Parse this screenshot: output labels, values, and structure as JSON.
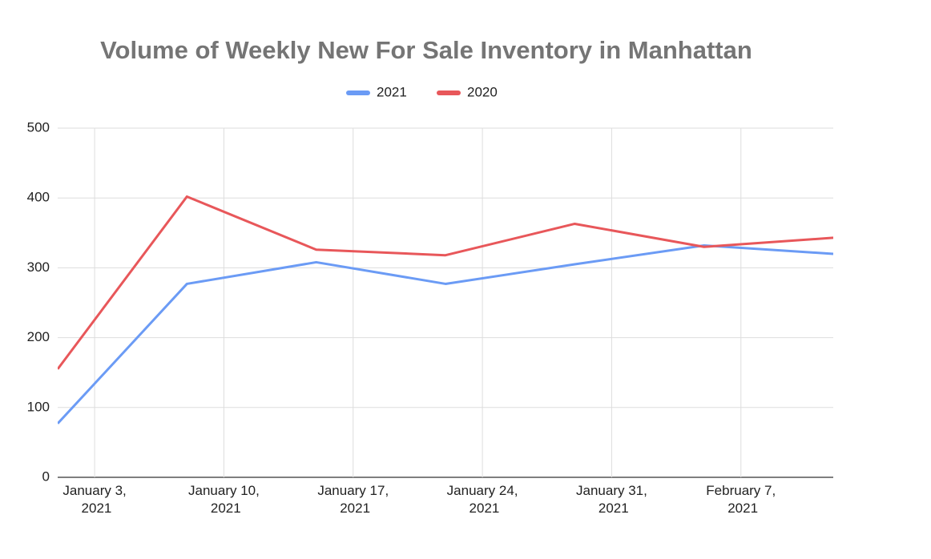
{
  "chart_data": {
    "type": "line",
    "title": "Volume of Weekly New For Sale Inventory in Manhattan",
    "x": [
      "2021-01-01",
      "2021-01-08",
      "2021-01-15",
      "2021-01-22",
      "2021-01-29",
      "2021-02-05",
      "2021-02-12"
    ],
    "series": [
      {
        "name": "2021",
        "color": "#6b9bf5",
        "values": [
          77,
          277,
          308,
          277,
          305,
          332,
          320
        ]
      },
      {
        "name": "2020",
        "color": "#e8575a",
        "values": [
          155,
          402,
          326,
          318,
          363,
          330,
          343
        ]
      }
    ],
    "xlim": [
      "2021-01-01",
      "2021-02-12"
    ],
    "xticks": [
      {
        "value": "2021-01-03",
        "label": "January 3, 2021"
      },
      {
        "value": "2021-01-10",
        "label": "January 10, 2021"
      },
      {
        "value": "2021-01-17",
        "label": "January 17, 2021"
      },
      {
        "value": "2021-01-24",
        "label": "January 24, 2021"
      },
      {
        "value": "2021-01-31",
        "label": "January 31, 2021"
      },
      {
        "value": "2021-02-07",
        "label": "February 7, 2021"
      }
    ],
    "ylim": [
      0,
      500
    ],
    "yticks": [
      0,
      100,
      200,
      300,
      400,
      500
    ],
    "grid": true,
    "legend": "top"
  }
}
